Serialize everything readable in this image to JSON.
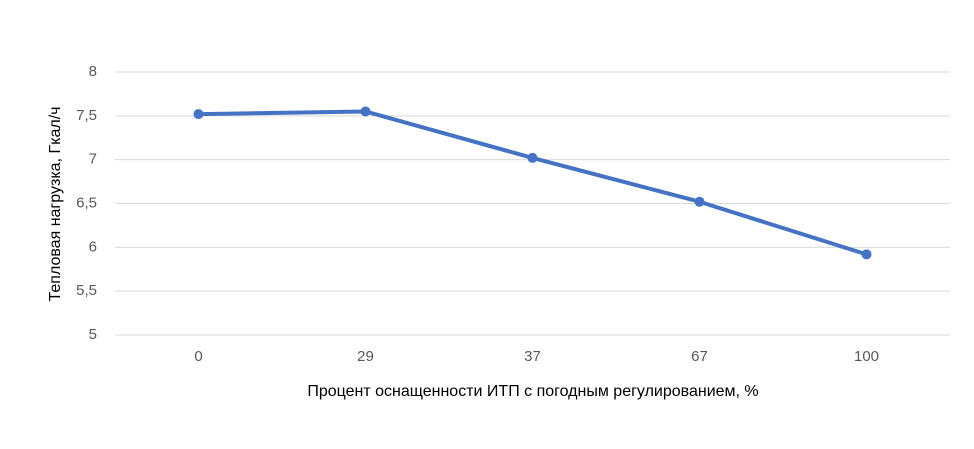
{
  "chart_data": {
    "type": "line",
    "x_label": "Процент оснащенности ИТП с погодным регулированием, %",
    "y_label": "Тепловая нагрузка, Гкал/ч",
    "categories": [
      "0",
      "29",
      "37",
      "67",
      "100"
    ],
    "series": [
      {
        "name": "Тепловая нагрузка",
        "color": "#4472c4",
        "values": [
          7.52,
          7.55,
          7.02,
          6.52,
          5.92
        ]
      }
    ],
    "ylim": [
      5,
      8
    ],
    "yticks": [
      5,
      {
        "value": 5.5,
        "label": "5,5"
      },
      6,
      {
        "value": 6.5,
        "label": "6,5"
      },
      7,
      {
        "value": 7.5,
        "label": "7,5"
      },
      8
    ],
    "grid": true
  }
}
